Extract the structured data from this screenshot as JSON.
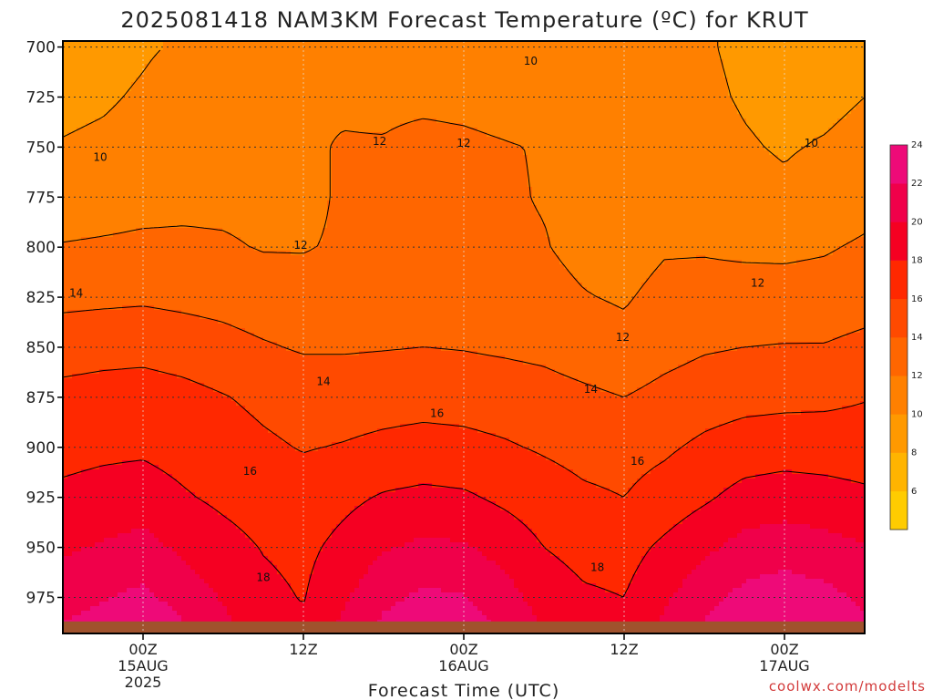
{
  "chart_data": {
    "type": "heatmap",
    "title": "2025081418 NAM3KM Forecast Temperature (ºC) for KRUT",
    "xlabel": "Forecast Time (UTC)",
    "ylabel": "",
    "y_axis": {
      "unit": "hPa",
      "reversed": true,
      "ticks": [
        700,
        725,
        750,
        775,
        800,
        825,
        850,
        875,
        900,
        925,
        950,
        975
      ],
      "range": [
        993,
        697
      ]
    },
    "x_axis": {
      "range_hours": [
        0,
        60
      ],
      "ticks": [
        {
          "hour": 6,
          "lines": [
            "00Z",
            "15AUG",
            "2025"
          ]
        },
        {
          "hour": 18,
          "lines": [
            "12Z"
          ]
        },
        {
          "hour": 30,
          "lines": [
            "00Z",
            "16AUG"
          ]
        },
        {
          "hour": 42,
          "lines": [
            "12Z"
          ]
        },
        {
          "hour": 54,
          "lines": [
            "00Z",
            "17AUG"
          ]
        }
      ]
    },
    "color_scale": {
      "levels": [
        4,
        6,
        8,
        10,
        12,
        14,
        16,
        18,
        20,
        22,
        24,
        26
      ],
      "labels": [
        6,
        8,
        10,
        12,
        14,
        16,
        18,
        20,
        22,
        24
      ],
      "colors": [
        "#ffcc00",
        "#ffb400",
        "#ff9900",
        "#ff8000",
        "#ff6600",
        "#ff4a00",
        "#ff2800",
        "#f50022",
        "#f0004a",
        "#ee0a78"
      ]
    },
    "profile_pressures": [
      700,
      725,
      750,
      775,
      800,
      825,
      850,
      875,
      900,
      925,
      950,
      975,
      990
    ],
    "profiles": [
      {
        "hour": 0,
        "temps": [
          9.2,
          9.6,
          10.1,
          11.1,
          12.1,
          13.5,
          15.1,
          16.6,
          17.4,
          18.4,
          19.7,
          21.2,
          22.2
        ]
      },
      {
        "hour": 3,
        "temps": [
          9.4,
          9.8,
          10.3,
          11.3,
          12.2,
          13.6,
          15.3,
          16.8,
          17.6,
          18.7,
          20.2,
          21.8,
          23.0
        ]
      },
      {
        "hour": 6,
        "temps": [
          9.8,
          10.2,
          10.6,
          11.5,
          12.3,
          13.7,
          15.4,
          16.9,
          17.7,
          18.9,
          20.7,
          22.5,
          23.7
        ]
      },
      {
        "hour": 9,
        "temps": [
          10.2,
          10.8,
          11.1,
          11.6,
          12.3,
          13.5,
          15.1,
          16.6,
          17.3,
          18.2,
          19.6,
          21.2,
          22.2
        ]
      },
      {
        "hour": 12,
        "temps": [
          10.7,
          11.4,
          11.5,
          11.6,
          12.2,
          13.3,
          14.7,
          16.1,
          16.8,
          17.6,
          18.7,
          19.8,
          20.5
        ]
      },
      {
        "hour": 15,
        "temps": [
          10.9,
          11.8,
          11.6,
          11.5,
          11.9,
          12.9,
          14.2,
          15.6,
          16.3,
          17.1,
          17.9,
          18.5,
          18.8
        ]
      },
      {
        "hour": 18,
        "temps": [
          10.9,
          11.9,
          11.8,
          11.6,
          11.9,
          12.7,
          13.8,
          15.2,
          15.9,
          16.8,
          17.5,
          17.9,
          18.3
        ]
      },
      {
        "hour": 21,
        "temps": [
          10.8,
          11.8,
          12.1,
          12.2,
          12.2,
          12.9,
          13.8,
          15.2,
          16.1,
          17.5,
          18.6,
          19.7,
          20.5
        ]
      },
      {
        "hour": 24,
        "temps": [
          10.7,
          11.7,
          12.1,
          12.3,
          12.4,
          13.0,
          13.9,
          15.3,
          16.4,
          18.2,
          19.8,
          21.5,
          22.5
        ]
      },
      {
        "hour": 27,
        "temps": [
          10.5,
          11.7,
          12.4,
          12.6,
          12.7,
          13.2,
          14.0,
          15.4,
          16.6,
          18.5,
          20.4,
          22.4,
          23.4
        ]
      },
      {
        "hour": 30,
        "temps": [
          10.3,
          11.6,
          12.3,
          12.5,
          12.6,
          13.1,
          13.9,
          15.3,
          16.5,
          18.3,
          20.2,
          22.1,
          23.1
        ]
      },
      {
        "hour": 33,
        "temps": [
          10.3,
          11.4,
          12.1,
          12.2,
          12.3,
          12.9,
          13.7,
          15.1,
          16.2,
          17.6,
          19.3,
          20.8,
          21.6
        ]
      },
      {
        "hour": 36,
        "temps": [
          10.5,
          11.2,
          11.9,
          11.9,
          12.1,
          12.6,
          13.5,
          14.8,
          15.8,
          16.9,
          18.0,
          19.2,
          19.9
        ]
      },
      {
        "hour": 39,
        "temps": [
          10.9,
          11.1,
          11.5,
          11.5,
          11.5,
          12.1,
          13.0,
          14.4,
          15.4,
          16.3,
          17.3,
          18.3,
          18.8
        ]
      },
      {
        "hour": 42,
        "temps": [
          10.7,
          10.7,
          11.0,
          11.0,
          11.1,
          11.8,
          12.6,
          14.0,
          15.3,
          16.0,
          17.2,
          18.0,
          18.5
        ]
      },
      {
        "hour": 45,
        "temps": [
          10.4,
          10.5,
          10.8,
          10.9,
          11.8,
          12.6,
          13.3,
          14.6,
          15.7,
          16.8,
          18.4,
          19.7,
          20.4
        ]
      },
      {
        "hour": 48,
        "temps": [
          10.1,
          10.2,
          10.4,
          10.7,
          11.8,
          12.8,
          13.8,
          15.1,
          16.4,
          17.7,
          19.6,
          21.3,
          22.2
        ]
      },
      {
        "hour": 51,
        "temps": [
          9.8,
          9.9,
          10.1,
          10.4,
          11.6,
          12.9,
          14.0,
          15.4,
          16.9,
          18.7,
          20.7,
          22.6,
          23.6
        ]
      },
      {
        "hour": 54,
        "temps": [
          9.6,
          9.7,
          9.9,
          10.2,
          11.6,
          12.8,
          14.1,
          15.5,
          17.1,
          19.0,
          21.1,
          23.1,
          24.0
        ]
      },
      {
        "hour": 57,
        "temps": [
          9.4,
          9.7,
          10.1,
          10.6,
          11.8,
          12.9,
          14.1,
          15.6,
          17.0,
          18.8,
          20.7,
          22.6,
          23.5
        ]
      },
      {
        "hour": 60,
        "temps": [
          9.5,
          10.0,
          10.4,
          11.2,
          12.3,
          13.2,
          14.5,
          15.9,
          16.9,
          18.4,
          20.1,
          21.6,
          22.4
        ]
      }
    ],
    "surface_pressure": 987,
    "contour_levels": [
      10,
      12,
      14,
      16,
      18
    ],
    "contour_labels": [
      {
        "text": "10",
        "hour": 2.8,
        "p": 755
      },
      {
        "text": "10",
        "hour": 35.0,
        "p": 707
      },
      {
        "text": "10",
        "hour": 56.0,
        "p": 748
      },
      {
        "text": "12",
        "hour": 17.8,
        "p": 799
      },
      {
        "text": "12",
        "hour": 23.7,
        "p": 747
      },
      {
        "text": "12",
        "hour": 30.0,
        "p": 748
      },
      {
        "text": "12",
        "hour": 41.9,
        "p": 845
      },
      {
        "text": "12",
        "hour": 52.0,
        "p": 818
      },
      {
        "text": "14",
        "hour": 1.0,
        "p": 823
      },
      {
        "text": "14",
        "hour": 19.5,
        "p": 867
      },
      {
        "text": "14",
        "hour": 39.5,
        "p": 871
      },
      {
        "text": "16",
        "hour": 14.0,
        "p": 912
      },
      {
        "text": "16",
        "hour": 28.0,
        "p": 883
      },
      {
        "text": "16",
        "hour": 43.0,
        "p": 907
      },
      {
        "text": "18",
        "hour": 15.0,
        "p": 965
      },
      {
        "text": "18",
        "hour": 40.0,
        "p": 960
      }
    ]
  },
  "watermark": "coolwx.com/modelts"
}
